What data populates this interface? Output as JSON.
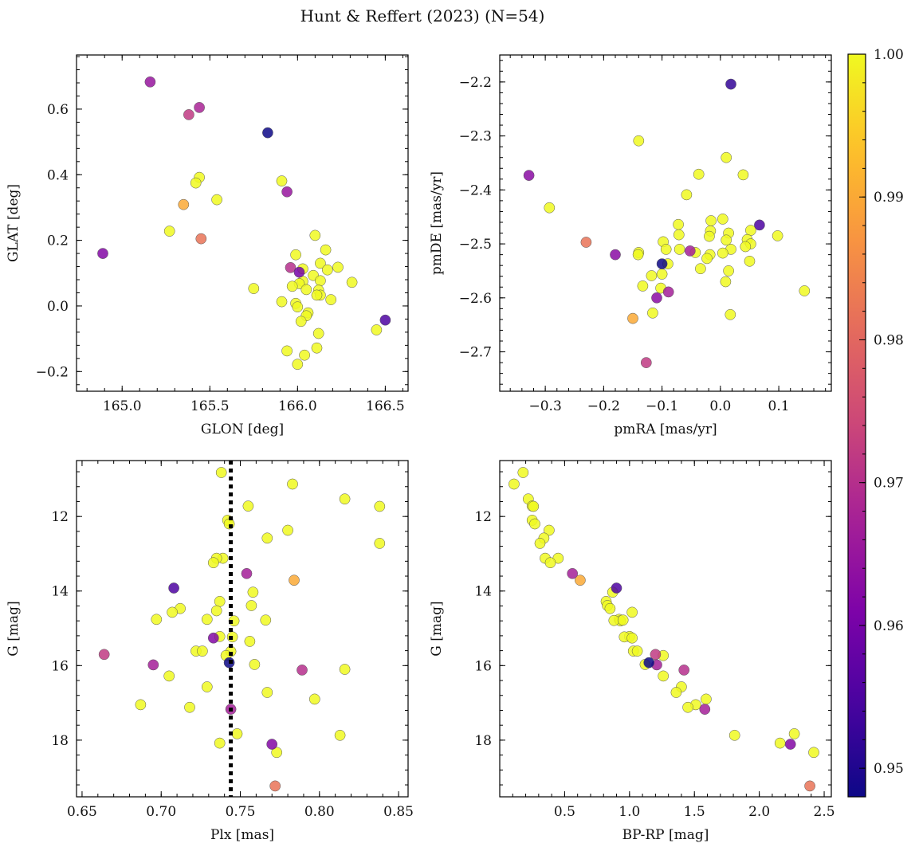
{
  "title": "Hunt & Reffert (2023) (N=54)",
  "colorbar": {
    "range": [
      0.948,
      1.0
    ],
    "ticks": [
      {
        "v": 0.95,
        "label": "0.95"
      },
      {
        "v": 0.96,
        "label": "0.96"
      },
      {
        "v": 0.97,
        "label": "0.97"
      },
      {
        "v": 0.98,
        "label": "0.98"
      },
      {
        "v": 0.99,
        "label": "0.99"
      },
      {
        "v": 1.0,
        "label": "1.00"
      }
    ]
  },
  "chart_data": [
    {
      "type": "scatter",
      "xlabel": "GLON [deg]",
      "ylabel": "GLAT [deg]",
      "xlim": [
        164.74,
        166.63
      ],
      "ylim": [
        -0.26,
        0.765
      ],
      "xticks": [
        {
          "v": 165.0,
          "label": "165.0"
        },
        {
          "v": 165.5,
          "label": "165.5"
        },
        {
          "v": 166.0,
          "label": "166.0"
        },
        {
          "v": 166.5,
          "label": "166.5"
        }
      ],
      "yticks": [
        {
          "v": -0.2,
          "label": "−0.2"
        },
        {
          "v": 0.0,
          "label": "0.0"
        },
        {
          "v": 0.2,
          "label": "0.2"
        },
        {
          "v": 0.4,
          "label": "0.4"
        },
        {
          "v": 0.6,
          "label": "0.6"
        }
      ],
      "points": [
        [
          165.16,
          0.683,
          0.965
        ],
        [
          165.44,
          0.605,
          0.968
        ],
        [
          165.38,
          0.583,
          0.972
        ],
        [
          165.83,
          0.528,
          0.948
        ],
        [
          165.44,
          0.392,
          1.0
        ],
        [
          165.42,
          0.375,
          1.0
        ],
        [
          165.91,
          0.381,
          1.0
        ],
        [
          165.94,
          0.348,
          0.965
        ],
        [
          165.54,
          0.324,
          1.0
        ],
        [
          165.35,
          0.309,
          0.99
        ],
        [
          165.27,
          0.228,
          1.0
        ],
        [
          165.45,
          0.205,
          0.982
        ],
        [
          164.89,
          0.16,
          0.962
        ],
        [
          166.1,
          0.215,
          1.0
        ],
        [
          166.16,
          0.171,
          1.0
        ],
        [
          165.99,
          0.156,
          1.0
        ],
        [
          166.13,
          0.13,
          1.0
        ],
        [
          165.96,
          0.117,
          0.97
        ],
        [
          166.03,
          0.113,
          1.0
        ],
        [
          166.23,
          0.118,
          1.0
        ],
        [
          166.17,
          0.11,
          1.0
        ],
        [
          166.01,
          0.103,
          0.96
        ],
        [
          166.09,
          0.093,
          1.0
        ],
        [
          166.03,
          0.075,
          1.0
        ],
        [
          166.01,
          0.068,
          1.0
        ],
        [
          166.31,
          0.072,
          1.0
        ],
        [
          166.13,
          0.077,
          1.0
        ],
        [
          165.97,
          0.06,
          1.0
        ],
        [
          166.05,
          0.05,
          1.0
        ],
        [
          166.12,
          0.048,
          1.0
        ],
        [
          165.75,
          0.053,
          1.0
        ],
        [
          166.13,
          0.033,
          1.0
        ],
        [
          166.11,
          0.033,
          1.0
        ],
        [
          166.19,
          0.019,
          1.0
        ],
        [
          165.91,
          0.013,
          1.0
        ],
        [
          165.99,
          0.008,
          1.0
        ],
        [
          166.0,
          -0.003,
          1.0
        ],
        [
          166.06,
          -0.021,
          1.0
        ],
        [
          166.05,
          -0.03,
          1.0
        ],
        [
          166.02,
          -0.047,
          1.0
        ],
        [
          166.5,
          -0.043,
          0.955
        ],
        [
          166.45,
          -0.073,
          1.0
        ],
        [
          166.12,
          -0.084,
          1.0
        ],
        [
          166.11,
          -0.128,
          1.0
        ],
        [
          165.94,
          -0.137,
          1.0
        ],
        [
          166.04,
          -0.15,
          1.0
        ],
        [
          166.0,
          -0.178,
          1.0
        ]
      ]
    },
    {
      "type": "scatter",
      "xlabel": "pmRA [mas/yr]",
      "ylabel": "pmDE [mas/yr]",
      "xlim": [
        -0.378,
        0.19
      ],
      "ylim": [
        -2.773,
        -2.15
      ],
      "xticks": [
        {
          "v": -0.3,
          "label": "−0.3"
        },
        {
          "v": -0.2,
          "label": "−0.2"
        },
        {
          "v": -0.1,
          "label": "−0.1"
        },
        {
          "v": 0.0,
          "label": "0.0"
        },
        {
          "v": 0.1,
          "label": "0.1"
        }
      ],
      "yticks": [
        {
          "v": -2.7,
          "label": "−2.7"
        },
        {
          "v": -2.6,
          "label": "−2.6"
        },
        {
          "v": -2.5,
          "label": "−2.5"
        },
        {
          "v": -2.4,
          "label": "−2.4"
        },
        {
          "v": -2.3,
          "label": "−2.3"
        },
        {
          "v": -2.2,
          "label": "−2.2"
        }
      ],
      "points": [
        [
          0.018,
          -2.204,
          0.952
        ],
        [
          -0.14,
          -2.309,
          1.0
        ],
        [
          0.01,
          -2.34,
          1.0
        ],
        [
          -0.328,
          -2.373,
          0.963
        ],
        [
          0.039,
          -2.372,
          1.0
        ],
        [
          -0.037,
          -2.371,
          1.0
        ],
        [
          -0.058,
          -2.409,
          1.0
        ],
        [
          -0.293,
          -2.433,
          1.0
        ],
        [
          -0.016,
          -2.457,
          1.0
        ],
        [
          0.004,
          -2.454,
          1.0
        ],
        [
          -0.072,
          -2.464,
          1.0
        ],
        [
          0.067,
          -2.465,
          0.955
        ],
        [
          -0.017,
          -2.476,
          1.0
        ],
        [
          0.052,
          -2.475,
          1.0
        ],
        [
          0.014,
          -2.48,
          1.0
        ],
        [
          -0.071,
          -2.483,
          1.0
        ],
        [
          -0.019,
          -2.486,
          1.0
        ],
        [
          0.098,
          -2.485,
          1.0
        ],
        [
          0.046,
          -2.492,
          1.0
        ],
        [
          0.01,
          -2.493,
          1.0
        ],
        [
          -0.098,
          -2.496,
          1.0
        ],
        [
          -0.23,
          -2.497,
          0.982
        ],
        [
          0.052,
          -2.5,
          1.0
        ],
        [
          0.043,
          -2.505,
          1.0
        ],
        [
          -0.093,
          -2.51,
          1.0
        ],
        [
          -0.07,
          -2.51,
          1.0
        ],
        [
          0.018,
          -2.51,
          1.0
        ],
        [
          -0.052,
          -2.513,
          0.967
        ],
        [
          -0.18,
          -2.52,
          0.963
        ],
        [
          -0.043,
          -2.516,
          1.0
        ],
        [
          0.004,
          -2.517,
          1.0
        ],
        [
          -0.14,
          -2.516,
          1.0
        ],
        [
          -0.141,
          -2.52,
          1.0
        ],
        [
          -0.018,
          -2.52,
          1.0
        ],
        [
          -0.023,
          -2.527,
          1.0
        ],
        [
          0.05,
          -2.532,
          1.0
        ],
        [
          -0.1,
          -2.537,
          0.948
        ],
        [
          -0.09,
          -2.537,
          1.0
        ],
        [
          -0.034,
          -2.546,
          1.0
        ],
        [
          0.014,
          -2.55,
          1.0
        ],
        [
          -0.1,
          -2.556,
          1.0
        ],
        [
          -0.118,
          -2.559,
          1.0
        ],
        [
          0.009,
          -2.57,
          1.0
        ],
        [
          -0.133,
          -2.578,
          1.0
        ],
        [
          -0.102,
          -2.582,
          1.0
        ],
        [
          0.144,
          -2.587,
          1.0
        ],
        [
          -0.089,
          -2.589,
          0.967
        ],
        [
          -0.109,
          -2.6,
          0.963
        ],
        [
          -0.116,
          -2.628,
          1.0
        ],
        [
          0.017,
          -2.631,
          1.0
        ],
        [
          -0.15,
          -2.638,
          0.99
        ],
        [
          -0.127,
          -2.72,
          0.972
        ]
      ]
    },
    {
      "type": "scatter",
      "xlabel": "Plx [mas]",
      "ylabel": "G [mag]",
      "xlim": [
        0.6465,
        0.856
      ],
      "ylim": [
        19.52,
        10.5
      ],
      "xticks": [
        {
          "v": 0.65,
          "label": "0.65"
        },
        {
          "v": 0.7,
          "label": "0.70"
        },
        {
          "v": 0.75,
          "label": "0.75"
        },
        {
          "v": 0.8,
          "label": "0.80"
        },
        {
          "v": 0.85,
          "label": "0.85"
        }
      ],
      "yticks": [
        {
          "v": 12,
          "label": "12"
        },
        {
          "v": 14,
          "label": "14"
        },
        {
          "v": 16,
          "label": "16"
        },
        {
          "v": 18,
          "label": "18"
        }
      ],
      "vline": 0.744,
      "points": [
        [
          0.738,
          10.82,
          1.0
        ],
        [
          0.783,
          11.13,
          1.0
        ],
        [
          0.816,
          11.53,
          1.0
        ],
        [
          0.755,
          11.72,
          1.0
        ],
        [
          0.838,
          11.73,
          1.0
        ],
        [
          0.742,
          12.1,
          1.0
        ],
        [
          0.743,
          12.2,
          1.0
        ],
        [
          0.78,
          12.37,
          1.0
        ],
        [
          0.767,
          12.58,
          1.0
        ],
        [
          0.838,
          12.72,
          1.0
        ],
        [
          0.739,
          13.12,
          1.0
        ],
        [
          0.735,
          13.12,
          1.0
        ],
        [
          0.733,
          13.24,
          1.0
        ],
        [
          0.754,
          13.53,
          0.967
        ],
        [
          0.784,
          13.71,
          0.99
        ],
        [
          0.708,
          13.92,
          0.955
        ],
        [
          0.758,
          14.03,
          1.0
        ],
        [
          0.737,
          14.28,
          1.0
        ],
        [
          0.757,
          14.39,
          1.0
        ],
        [
          0.712,
          14.47,
          1.0
        ],
        [
          0.707,
          14.57,
          1.0
        ],
        [
          0.735,
          14.53,
          1.0
        ],
        [
          0.729,
          14.76,
          1.0
        ],
        [
          0.746,
          14.8,
          1.0
        ],
        [
          0.697,
          14.76,
          1.0
        ],
        [
          0.766,
          14.78,
          1.0
        ],
        [
          0.737,
          15.22,
          1.0
        ],
        [
          0.745,
          15.23,
          1.0
        ],
        [
          0.733,
          15.26,
          0.962
        ],
        [
          0.756,
          15.35,
          1.0
        ],
        [
          0.722,
          15.61,
          1.0
        ],
        [
          0.726,
          15.61,
          1.0
        ],
        [
          0.744,
          15.62,
          1.0
        ],
        [
          0.741,
          15.73,
          1.0
        ],
        [
          0.664,
          15.7,
          0.972
        ],
        [
          0.743,
          15.92,
          0.948
        ],
        [
          0.759,
          15.97,
          1.0
        ],
        [
          0.695,
          15.98,
          0.967
        ],
        [
          0.789,
          16.12,
          0.97
        ],
        [
          0.816,
          16.1,
          1.0
        ],
        [
          0.705,
          16.28,
          1.0
        ],
        [
          0.729,
          16.57,
          1.0
        ],
        [
          0.767,
          16.72,
          1.0
        ],
        [
          0.797,
          16.9,
          1.0
        ],
        [
          0.687,
          17.05,
          1.0
        ],
        [
          0.718,
          17.12,
          1.0
        ],
        [
          0.744,
          17.17,
          0.967
        ],
        [
          0.748,
          17.83,
          1.0
        ],
        [
          0.813,
          17.87,
          1.0
        ],
        [
          0.737,
          18.08,
          1.0
        ],
        [
          0.77,
          18.11,
          0.962
        ],
        [
          0.773,
          18.33,
          1.0
        ],
        [
          0.772,
          19.23,
          0.982
        ]
      ]
    },
    {
      "type": "scatter",
      "xlabel": "BP-RP [mag]",
      "ylabel": "G [mag]",
      "xlim": [
        0.0,
        2.555
      ],
      "ylim": [
        19.52,
        10.5
      ],
      "xticks": [
        {
          "v": 0.5,
          "label": "0.5"
        },
        {
          "v": 1.0,
          "label": "1.0"
        },
        {
          "v": 1.5,
          "label": "1.5"
        },
        {
          "v": 2.0,
          "label": "2.0"
        },
        {
          "v": 2.5,
          "label": "2.5"
        }
      ],
      "yticks": [
        {
          "v": 12,
          "label": "12"
        },
        {
          "v": 14,
          "label": "14"
        },
        {
          "v": 16,
          "label": "16"
        },
        {
          "v": 18,
          "label": "18"
        }
      ],
      "points": [
        [
          0.18,
          10.82,
          1.0
        ],
        [
          0.11,
          11.13,
          1.0
        ],
        [
          0.22,
          11.53,
          1.0
        ],
        [
          0.25,
          11.72,
          1.0
        ],
        [
          0.26,
          11.73,
          1.0
        ],
        [
          0.25,
          12.1,
          1.0
        ],
        [
          0.27,
          12.2,
          1.0
        ],
        [
          0.38,
          12.37,
          1.0
        ],
        [
          0.34,
          12.58,
          1.0
        ],
        [
          0.31,
          12.72,
          1.0
        ],
        [
          0.35,
          13.12,
          1.0
        ],
        [
          0.45,
          13.12,
          1.0
        ],
        [
          0.39,
          13.24,
          1.0
        ],
        [
          0.56,
          13.53,
          0.967
        ],
        [
          0.62,
          13.71,
          0.99
        ],
        [
          0.9,
          13.92,
          0.955
        ],
        [
          0.87,
          14.03,
          1.0
        ],
        [
          0.82,
          14.28,
          1.0
        ],
        [
          0.83,
          14.39,
          1.0
        ],
        [
          0.85,
          14.47,
          1.0
        ],
        [
          1.02,
          14.57,
          1.0
        ],
        [
          0.92,
          14.76,
          1.0
        ],
        [
          0.93,
          14.8,
          1.0
        ],
        [
          0.88,
          14.79,
          1.0
        ],
        [
          0.95,
          14.78,
          1.0
        ],
        [
          1.0,
          15.22,
          1.0
        ],
        [
          0.96,
          15.23,
          1.0
        ],
        [
          1.02,
          15.26,
          1.0
        ],
        [
          1.03,
          15.61,
          1.0
        ],
        [
          1.06,
          15.61,
          1.0
        ],
        [
          1.26,
          15.73,
          1.0
        ],
        [
          1.2,
          15.7,
          0.972
        ],
        [
          1.15,
          15.92,
          0.948
        ],
        [
          1.12,
          15.97,
          1.0
        ],
        [
          1.21,
          15.98,
          0.967
        ],
        [
          1.42,
          16.12,
          0.97
        ],
        [
          1.26,
          16.28,
          1.0
        ],
        [
          1.4,
          16.57,
          1.0
        ],
        [
          1.36,
          16.72,
          1.0
        ],
        [
          1.59,
          16.9,
          1.0
        ],
        [
          1.51,
          17.05,
          1.0
        ],
        [
          1.45,
          17.12,
          1.0
        ],
        [
          1.58,
          17.17,
          0.967
        ],
        [
          1.81,
          17.87,
          1.0
        ],
        [
          2.27,
          17.83,
          1.0
        ],
        [
          2.16,
          18.08,
          1.0
        ],
        [
          2.24,
          18.11,
          0.962
        ],
        [
          2.42,
          18.33,
          1.0
        ],
        [
          2.39,
          19.23,
          0.982
        ]
      ]
    }
  ]
}
